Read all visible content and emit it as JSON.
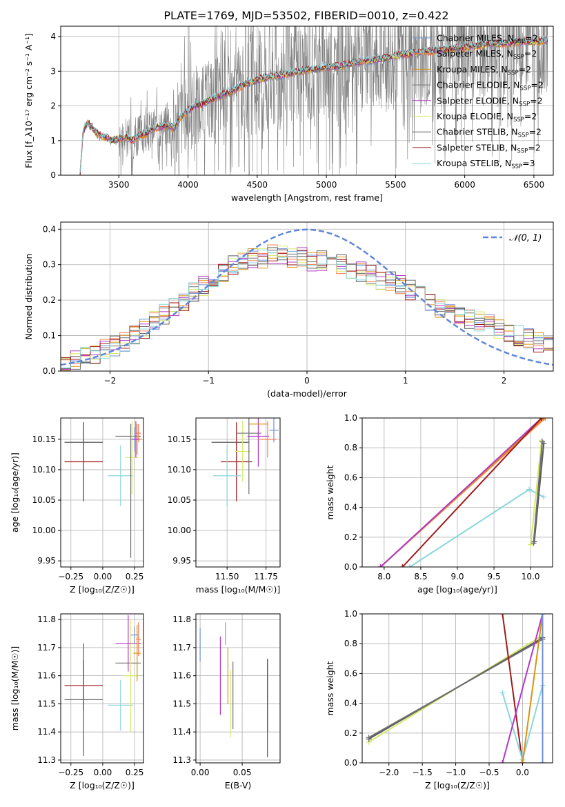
{
  "title": "PLATE=1769, MJD=53502, FIBERID=0010, z=0.422",
  "colors": {
    "chab_miles": "#6f8fd8",
    "salp_miles": "#ff7f50",
    "krou_miles": "#d9920d",
    "chab_elodie": "#6f6f6f",
    "salp_elodie": "#b336c8",
    "krou_elodie": "#d6e86a",
    "chab_stelib": "#5a5a5a",
    "salp_stelib": "#a01818",
    "krou_stelib": "#88d6dc",
    "data": "#808080",
    "gauss": "#5f86d8",
    "grid": "#b0b0b0"
  },
  "chart_data": [
    {
      "id": "spectrum",
      "type": "line",
      "xlabel": "wavelength [Angstrom, rest frame]",
      "ylabel": "Flux [f_λ10⁻¹⁷ erg cm⁻² s⁻¹ A⁻¹]",
      "xlim": [
        3080,
        6640
      ],
      "ylim": [
        0,
        4.3
      ],
      "xticks": [
        "3500",
        "4000",
        "4500",
        "5000",
        "5500",
        "6000",
        "6500"
      ],
      "yticks": [
        "0",
        "1",
        "2",
        "3",
        "4"
      ],
      "legend_position": "top-right",
      "legend": [
        {
          "label": "Chabrier MILES, N",
          "sub": "SSP",
          "suffix": "=2",
          "color": "chab_miles"
        },
        {
          "label": "Salpeter MILES, N",
          "sub": "SSP",
          "suffix": "=2",
          "color": "salp_miles"
        },
        {
          "label": "Kroupa MILES, N",
          "sub": "SSP",
          "suffix": "=2",
          "color": "krou_miles"
        },
        {
          "label": "Chabrier ELODIE, N",
          "sub": "SSP",
          "suffix": "=2",
          "color": "chab_elodie"
        },
        {
          "label": "Salpeter ELODIE, N",
          "sub": "SSP",
          "suffix": "=2",
          "color": "salp_elodie"
        },
        {
          "label": "Kroupa ELODIE, N",
          "sub": "SSP",
          "suffix": "=2",
          "color": "krou_elodie"
        },
        {
          "label": "Chabrier STELIB, N",
          "sub": "SSP",
          "suffix": "=2",
          "color": "chab_stelib"
        },
        {
          "label": "Salpeter STELIB, N",
          "sub": "SSP",
          "suffix": "=2",
          "color": "salp_stelib"
        },
        {
          "label": "Kroupa STELIB, N",
          "sub": "SSP",
          "suffix": "=3",
          "color": "krou_stelib"
        }
      ],
      "model_x": [
        3220,
        3240,
        3260,
        3280,
        3300,
        3330,
        3360,
        3400,
        3450,
        3500,
        3550,
        3600,
        3650,
        3700,
        3750,
        3800,
        3850,
        3900,
        3950,
        4000,
        4050,
        4100,
        4200,
        4300,
        4400,
        4500,
        4600,
        4700,
        4800,
        4900,
        5000,
        5100,
        5200,
        5300,
        5400,
        5500,
        5600,
        5700,
        5800,
        5900,
        6000,
        6100,
        6200,
        6300,
        6400,
        6500,
        6600
      ],
      "model_y": [
        0.05,
        1.2,
        1.45,
        1.5,
        1.4,
        1.25,
        1.15,
        1.1,
        1.0,
        1.05,
        1.1,
        1.0,
        1.15,
        1.2,
        1.35,
        1.4,
        1.45,
        1.35,
        1.7,
        1.85,
        2.0,
        2.05,
        2.25,
        2.4,
        2.6,
        2.75,
        2.85,
        2.9,
        3.0,
        3.05,
        3.1,
        3.15,
        3.25,
        3.3,
        3.35,
        3.45,
        3.5,
        3.55,
        3.6,
        3.65,
        3.7,
        3.75,
        3.8,
        3.8,
        3.85,
        3.85,
        3.9
      ]
    },
    {
      "id": "residuals",
      "type": "line",
      "xlabel": "(data-model)/error",
      "ylabel": "Normed distribution",
      "xlim": [
        -2.5,
        2.5
      ],
      "ylim": [
        0,
        0.42
      ],
      "xticks": [
        "−2",
        "−1",
        "0",
        "1",
        "2"
      ],
      "yticks": [
        "0.0",
        "0.1",
        "0.2",
        "0.3",
        "0.4"
      ],
      "legend_position": "top-right",
      "legend": [
        {
          "label": "𝒩(0, 1)",
          "color": "gauss"
        }
      ],
      "bin_centers": [
        -2.45,
        -2.35,
        -2.25,
        -2.15,
        -2.05,
        -1.95,
        -1.85,
        -1.75,
        -1.65,
        -1.55,
        -1.45,
        -1.35,
        -1.25,
        -1.15,
        -1.05,
        -0.95,
        -0.85,
        -0.75,
        -0.65,
        -0.55,
        -0.45,
        -0.35,
        -0.25,
        -0.15,
        -0.05,
        0.05,
        0.15,
        0.25,
        0.35,
        0.45,
        0.55,
        0.65,
        0.75,
        0.85,
        0.95,
        1.05,
        1.15,
        1.25,
        1.35,
        1.45,
        1.55,
        1.65,
        1.75,
        1.85,
        1.95,
        2.05,
        2.15,
        2.25,
        2.35,
        2.45
      ],
      "hist_base": [
        0.02,
        0.03,
        0.04,
        0.05,
        0.06,
        0.07,
        0.08,
        0.1,
        0.12,
        0.14,
        0.16,
        0.18,
        0.2,
        0.22,
        0.24,
        0.26,
        0.28,
        0.3,
        0.31,
        0.32,
        0.32,
        0.33,
        0.33,
        0.32,
        0.32,
        0.31,
        0.31,
        0.3,
        0.3,
        0.29,
        0.28,
        0.27,
        0.26,
        0.25,
        0.24,
        0.23,
        0.21,
        0.2,
        0.18,
        0.17,
        0.16,
        0.15,
        0.14,
        0.13,
        0.12,
        0.11,
        0.1,
        0.09,
        0.08,
        0.07
      ]
    },
    {
      "id": "age_vs_Z",
      "type": "scatter",
      "xlabel": "Z [log₁₀(Z/Z☉)]",
      "ylabel": "age  [log₁₀(age/yr)]",
      "xlim": [
        -0.33,
        0.32
      ],
      "ylim": [
        9.94,
        10.185
      ],
      "xticks": [
        "−0.25",
        "0.00",
        "0.25"
      ],
      "yticks": [
        "9.95",
        "10.00",
        "10.05",
        "10.10",
        "10.15"
      ],
      "points": [
        {
          "x": -0.15,
          "y": 10.113,
          "xerr": 0.15,
          "yerr": 0.065,
          "color": "salp_stelib"
        },
        {
          "x": -0.15,
          "y": 10.145,
          "xerr": 0.15,
          "yerr": 0.0,
          "color": "chab_stelib"
        },
        {
          "x": 0.14,
          "y": 10.09,
          "xerr": 0.1,
          "yerr": 0.05,
          "color": "krou_stelib"
        },
        {
          "x": 0.2,
          "y": 10.155,
          "xerr": 0.1,
          "yerr": 0.0,
          "color": "chab_elodie"
        },
        {
          "x": 0.23,
          "y": 10.12,
          "xerr": 0.05,
          "yerr": 0.06,
          "color": "krou_elodie"
        },
        {
          "x": 0.22,
          "y": 10.065,
          "xerr": 0.0,
          "yerr": 0.11,
          "color": "chab_elodie"
        },
        {
          "x": 0.27,
          "y": 10.15,
          "xerr": 0.04,
          "yerr": 0.025,
          "color": "krou_miles"
        },
        {
          "x": 0.28,
          "y": 10.16,
          "xerr": 0.02,
          "yerr": 0.015,
          "color": "salp_miles"
        },
        {
          "x": 0.25,
          "y": 10.15,
          "xerr": 0.03,
          "yerr": 0.02,
          "color": "chab_miles"
        },
        {
          "x": 0.26,
          "y": 10.15,
          "xerr": 0.03,
          "yerr": 0.03,
          "color": "salp_elodie"
        }
      ]
    },
    {
      "id": "age_vs_mass",
      "type": "scatter",
      "xlabel": "mass [log₁₀(M/M☉)]",
      "ylabel": "",
      "xlim": [
        11.3,
        11.84
      ],
      "ylim": [
        9.94,
        10.185
      ],
      "xticks": [
        "11.50",
        "11.75"
      ],
      "yticks": [
        "9.95",
        "10.00",
        "10.05",
        "10.10",
        "10.15"
      ],
      "points": [
        {
          "x": 11.52,
          "y": 10.145,
          "xerr": 0.12,
          "yerr": 0.0,
          "color": "chab_stelib"
        },
        {
          "x": 11.56,
          "y": 10.113,
          "xerr": 0.1,
          "yerr": 0.065,
          "color": "salp_stelib"
        },
        {
          "x": 11.5,
          "y": 10.09,
          "xerr": 0.09,
          "yerr": 0.05,
          "color": "krou_stelib"
        },
        {
          "x": 11.6,
          "y": 10.13,
          "xerr": 0.05,
          "yerr": 0.05,
          "color": "krou_elodie"
        },
        {
          "x": 11.64,
          "y": 10.16,
          "xerr": 0.08,
          "yerr": 0.1,
          "color": "chab_elodie"
        },
        {
          "x": 11.7,
          "y": 10.155,
          "xerr": 0.07,
          "yerr": 0.05,
          "color": "salp_elodie"
        },
        {
          "x": 11.7,
          "y": 10.175,
          "xerr": 0.06,
          "yerr": 0.0,
          "color": "krou_miles"
        },
        {
          "x": 11.76,
          "y": 10.15,
          "xerr": 0.06,
          "yerr": 0.03,
          "color": "salp_miles"
        },
        {
          "x": 11.8,
          "y": 10.165,
          "xerr": 0.03,
          "yerr": 0.02,
          "color": "chab_miles"
        }
      ]
    },
    {
      "id": "weight_vs_age",
      "type": "line",
      "xlabel": "age  [log₁₀(age/yr)]",
      "ylabel": "mass weight",
      "xlim": [
        7.7,
        10.3
      ],
      "ylim": [
        0,
        1.0
      ],
      "xticks": [
        "8.0",
        "8.5",
        "9.0",
        "9.5",
        "10.0"
      ],
      "yticks": [
        "0.0",
        "0.2",
        "0.4",
        "0.6",
        "0.8",
        "1.0"
      ],
      "series": [
        {
          "color": "salp_miles",
          "x": [
            7.95,
            10.2
          ],
          "y": [
            0.0,
            1.0
          ]
        },
        {
          "color": "krou_miles",
          "x": [
            7.95,
            10.18
          ],
          "y": [
            0.0,
            1.0
          ]
        },
        {
          "color": "salp_elodie",
          "x": [
            7.95,
            10.15
          ],
          "y": [
            0.0,
            1.0
          ]
        },
        {
          "color": "salp_stelib",
          "x": [
            8.25,
            10.15
          ],
          "y": [
            0.0,
            1.0
          ]
        },
        {
          "color": "krou_stelib",
          "x": [
            8.35,
            9.98,
            10.18
          ],
          "y": [
            0.0,
            0.52,
            0.47
          ]
        },
        {
          "color": "krou_elodie",
          "x": [
            10.0,
            10.15
          ],
          "y": [
            0.15,
            0.85
          ]
        },
        {
          "color": "chab_stelib",
          "x": [
            10.05,
            10.18
          ],
          "y": [
            0.17,
            0.83
          ]
        },
        {
          "color": "chab_elodie",
          "x": [
            10.04,
            10.16
          ],
          "y": [
            0.16,
            0.84
          ]
        }
      ]
    },
    {
      "id": "mass_vs_Z",
      "type": "scatter",
      "xlabel": "Z [log₁₀(Z/Z☉)]",
      "ylabel": "mass [log₁₀(M/M☉)]",
      "xlim": [
        -0.33,
        0.32
      ],
      "ylim": [
        11.29,
        11.82
      ],
      "xticks": [
        "−0.25",
        "0.00",
        "0.25"
      ],
      "yticks": [
        "11.3",
        "11.4",
        "11.5",
        "11.6",
        "11.7",
        "11.8"
      ],
      "points": [
        {
          "x": -0.15,
          "y": 11.565,
          "xerr": 0.15,
          "yerr": 0.09,
          "color": "salp_stelib"
        },
        {
          "x": -0.15,
          "y": 11.515,
          "xerr": 0.15,
          "yerr": 0.2,
          "color": "chab_stelib"
        },
        {
          "x": 0.14,
          "y": 11.495,
          "xerr": 0.1,
          "yerr": 0.09,
          "color": "krou_stelib"
        },
        {
          "x": 0.2,
          "y": 11.645,
          "xerr": 0.1,
          "yerr": 0.0,
          "color": "chab_elodie"
        },
        {
          "x": 0.22,
          "y": 11.6,
          "xerr": 0.06,
          "yerr": 0.2,
          "color": "krou_elodie"
        },
        {
          "x": 0.2,
          "y": 11.715,
          "xerr": 0.1,
          "yerr": 0.1,
          "color": "salp_elodie"
        },
        {
          "x": 0.27,
          "y": 11.68,
          "xerr": 0.03,
          "yerr": 0.1,
          "color": "krou_miles"
        },
        {
          "x": 0.28,
          "y": 11.73,
          "xerr": 0.02,
          "yerr": 0.06,
          "color": "salp_miles"
        },
        {
          "x": 0.25,
          "y": 11.745,
          "xerr": 0.03,
          "yerr": 0.03,
          "color": "chab_miles"
        }
      ]
    },
    {
      "id": "mass_vs_EBV",
      "type": "scatter",
      "xlabel": "E(B-V)",
      "ylabel": "",
      "xlim": [
        -0.005,
        0.095
      ],
      "ylim": [
        11.29,
        11.82
      ],
      "xticks": [
        "0.00",
        "0.05"
      ],
      "yticks": [
        "11.3",
        "11.4",
        "11.5",
        "11.6",
        "11.7",
        "11.8"
      ],
      "points": [
        {
          "x": 0.0,
          "y": 11.71,
          "xerr": 0,
          "yerr": 0.06,
          "color": "chab_miles"
        },
        {
          "x": 0.024,
          "y": 11.6,
          "xerr": 0,
          "yerr": 0.14,
          "color": "salp_elodie"
        },
        {
          "x": 0.03,
          "y": 11.75,
          "xerr": 0,
          "yerr": 0.04,
          "color": "salp_miles"
        },
        {
          "x": 0.033,
          "y": 11.6,
          "xerr": 0,
          "yerr": 0.1,
          "color": "krou_miles"
        },
        {
          "x": 0.036,
          "y": 11.5,
          "xerr": 0,
          "yerr": 0.12,
          "color": "krou_elodie"
        },
        {
          "x": 0.039,
          "y": 11.53,
          "xerr": 0,
          "yerr": 0.12,
          "color": "chab_elodie"
        },
        {
          "x": 0.08,
          "y": 11.53,
          "xerr": 0,
          "yerr": 0.13,
          "color": "salp_stelib"
        },
        {
          "x": 0.08,
          "y": 11.48,
          "xerr": 0,
          "yerr": 0.17,
          "color": "chab_stelib"
        },
        {
          "x": 0.096,
          "y": 11.54,
          "xerr": 0,
          "yerr": 0.09,
          "color": "krou_stelib"
        }
      ]
    },
    {
      "id": "weight_vs_Z",
      "type": "line",
      "xlabel": "Z [log₁₀(Z/Z☉)]",
      "ylabel": "mass weight",
      "xlim": [
        -2.4,
        0.45
      ],
      "ylim": [
        0,
        1.0
      ],
      "xticks": [
        "−2.0",
        "−1.5",
        "−1.0",
        "−0.5",
        "0.0"
      ],
      "yticks": [
        "0.0",
        "0.2",
        "0.4",
        "0.6",
        "0.8",
        "1.0"
      ],
      "series": [
        {
          "color": "krou_elodie",
          "x": [
            -2.3,
            0.28
          ],
          "y": [
            0.14,
            0.85
          ]
        },
        {
          "color": "chab_stelib",
          "x": [
            -2.3,
            0.3
          ],
          "y": [
            0.16,
            0.84
          ]
        },
        {
          "color": "chab_elodie",
          "x": [
            -2.3,
            0.3
          ],
          "y": [
            0.17,
            0.83
          ]
        },
        {
          "color": "salp_stelib",
          "x": [
            -0.3,
            0.0
          ],
          "y": [
            1.0,
            0.0
          ]
        },
        {
          "color": "krou_stelib",
          "x": [
            -0.3,
            0.0,
            0.3
          ],
          "y": [
            0.47,
            0.02,
            0.52
          ]
        },
        {
          "color": "salp_elodie",
          "x": [
            -0.3,
            0.3
          ],
          "y": [
            0.0,
            1.0
          ]
        },
        {
          "color": "krou_miles",
          "x": [
            0.0,
            0.3
          ],
          "y": [
            0.0,
            1.0
          ]
        },
        {
          "color": "chab_miles",
          "x": [
            0.3,
            0.3
          ],
          "y": [
            0.0,
            1.0
          ]
        }
      ]
    }
  ]
}
